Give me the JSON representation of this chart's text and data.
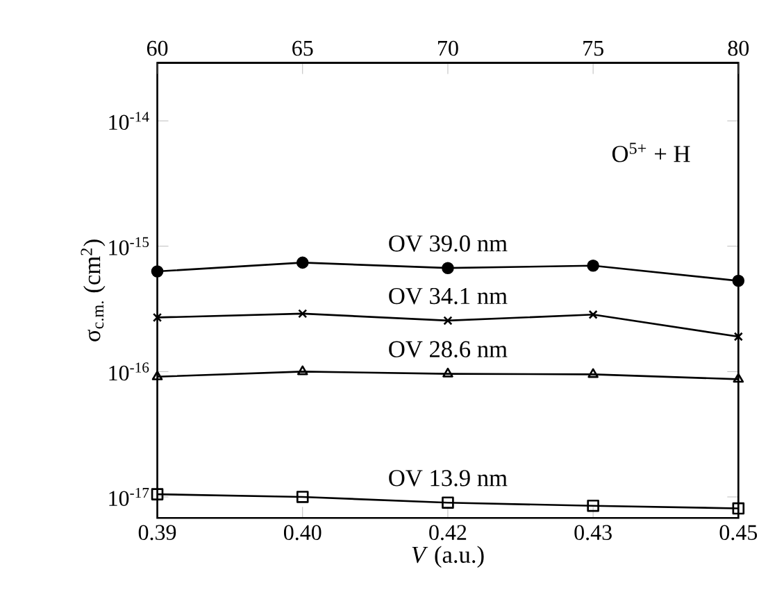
{
  "chart_data": {
    "type": "line",
    "xlabel": "*V* (a.u.)",
    "ylabel": "σ$_{c.m.}$ (cm$^{2}$)",
    "annotations": [
      "O$^{5+}$ + H"
    ],
    "categories": [
      "0.39",
      "0.40",
      "0.42",
      "0.43",
      "0.45"
    ],
    "x2lim": [
      60,
      80
    ],
    "x2ticks": [
      60,
      65,
      70,
      75,
      80
    ],
    "ylim": [
      6.8e-18,
      2.9e-14
    ],
    "log": "y",
    "yticks": [
      {
        "value": 1e-17,
        "label": "10$^{-17}$"
      },
      {
        "value": 1e-16,
        "label": "10$^{-16}$"
      },
      {
        "value": 1e-15,
        "label": "10$^{-15}$"
      },
      {
        "value": 1e-14,
        "label": "10$^{-14}$"
      }
    ],
    "grid": false,
    "line_style": "solid",
    "series": [
      {
        "name": "OV 39.0 nm",
        "color": "#000000",
        "marker": "circle",
        "values": [
          6.3e-16,
          7.4e-16,
          6.7e-16,
          7e-16,
          5.3e-16
        ]
      },
      {
        "name": "OV 34.1 nm",
        "color": "#000000",
        "marker": "cross",
        "values": [
          2.7e-16,
          2.9e-16,
          2.55e-16,
          2.85e-16,
          1.9e-16
        ]
      },
      {
        "name": "OV 28.6 nm",
        "color": "#000000",
        "marker": "triangle",
        "values": [
          9.1e-17,
          1e-16,
          9.6e-17,
          9.5e-17,
          8.7e-17
        ]
      },
      {
        "name": "OV 13.9 nm",
        "color": "#000000",
        "marker": "square",
        "values": [
          1.05e-17,
          1e-17,
          9e-18,
          8.5e-18,
          8.1e-18
        ]
      }
    ]
  }
}
